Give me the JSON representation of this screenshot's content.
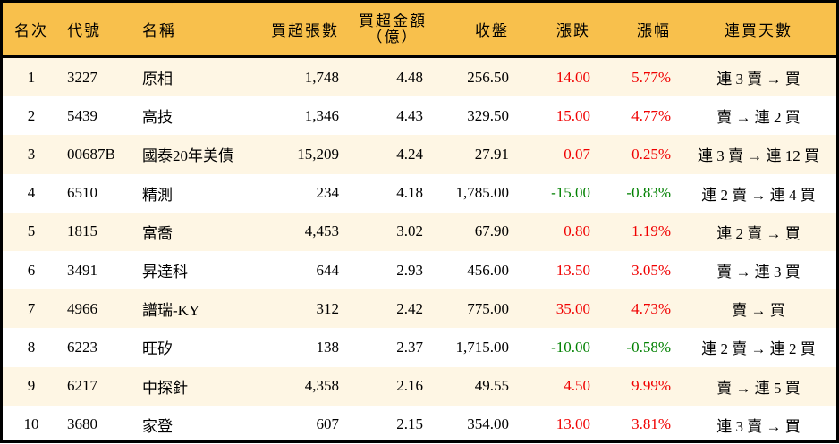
{
  "columns": [
    "名次",
    "代號",
    "名稱",
    "買超張數",
    "買超金額",
    "（億）",
    "收盤",
    "漲跌",
    "漲幅",
    "連買天數"
  ],
  "colors": {
    "header_bg": "#F8C04C",
    "row_alt_bg": "#FEF6E4",
    "up": "#F00000",
    "down": "#008000"
  },
  "rows": [
    {
      "rank": "1",
      "code": "3227",
      "name": "原相",
      "shares": "1,748",
      "amount": "4.48",
      "close": "256.50",
      "change": "14.00",
      "pct": "5.77%",
      "dir": "up",
      "streak": "連 3 賣 → 買"
    },
    {
      "rank": "2",
      "code": "5439",
      "name": "高技",
      "shares": "1,346",
      "amount": "4.43",
      "close": "329.50",
      "change": "15.00",
      "pct": "4.77%",
      "dir": "up",
      "streak": "賣 → 連 2 買"
    },
    {
      "rank": "3",
      "code": "00687B",
      "name": "國泰20年美債",
      "shares": "15,209",
      "amount": "4.24",
      "close": "27.91",
      "change": "0.07",
      "pct": "0.25%",
      "dir": "up",
      "streak": "連 3 賣 → 連 12 買"
    },
    {
      "rank": "4",
      "code": "6510",
      "name": "精測",
      "shares": "234",
      "amount": "4.18",
      "close": "1,785.00",
      "change": "-15.00",
      "pct": "-0.83%",
      "dir": "down",
      "streak": "連 2 賣 → 連 4 買"
    },
    {
      "rank": "5",
      "code": "1815",
      "name": "富喬",
      "shares": "4,453",
      "amount": "3.02",
      "close": "67.90",
      "change": "0.80",
      "pct": "1.19%",
      "dir": "up",
      "streak": "連 2 賣 → 買"
    },
    {
      "rank": "6",
      "code": "3491",
      "name": "昇達科",
      "shares": "644",
      "amount": "2.93",
      "close": "456.00",
      "change": "13.50",
      "pct": "3.05%",
      "dir": "up",
      "streak": "賣 → 連 3 買"
    },
    {
      "rank": "7",
      "code": "4966",
      "name": "譜瑞-KY",
      "shares": "312",
      "amount": "2.42",
      "close": "775.00",
      "change": "35.00",
      "pct": "4.73%",
      "dir": "up",
      "streak": "賣 → 買"
    },
    {
      "rank": "8",
      "code": "6223",
      "name": "旺矽",
      "shares": "138",
      "amount": "2.37",
      "close": "1,715.00",
      "change": "-10.00",
      "pct": "-0.58%",
      "dir": "down",
      "streak": "連 2 賣 → 連 2 買"
    },
    {
      "rank": "9",
      "code": "6217",
      "name": "中探針",
      "shares": "4,358",
      "amount": "2.16",
      "close": "49.55",
      "change": "4.50",
      "pct": "9.99%",
      "dir": "up",
      "streak": "賣 → 連 5 買"
    },
    {
      "rank": "10",
      "code": "3680",
      "name": "家登",
      "shares": "607",
      "amount": "2.15",
      "close": "354.00",
      "change": "13.00",
      "pct": "3.81%",
      "dir": "up",
      "streak": "連 3 賣 → 買"
    }
  ]
}
